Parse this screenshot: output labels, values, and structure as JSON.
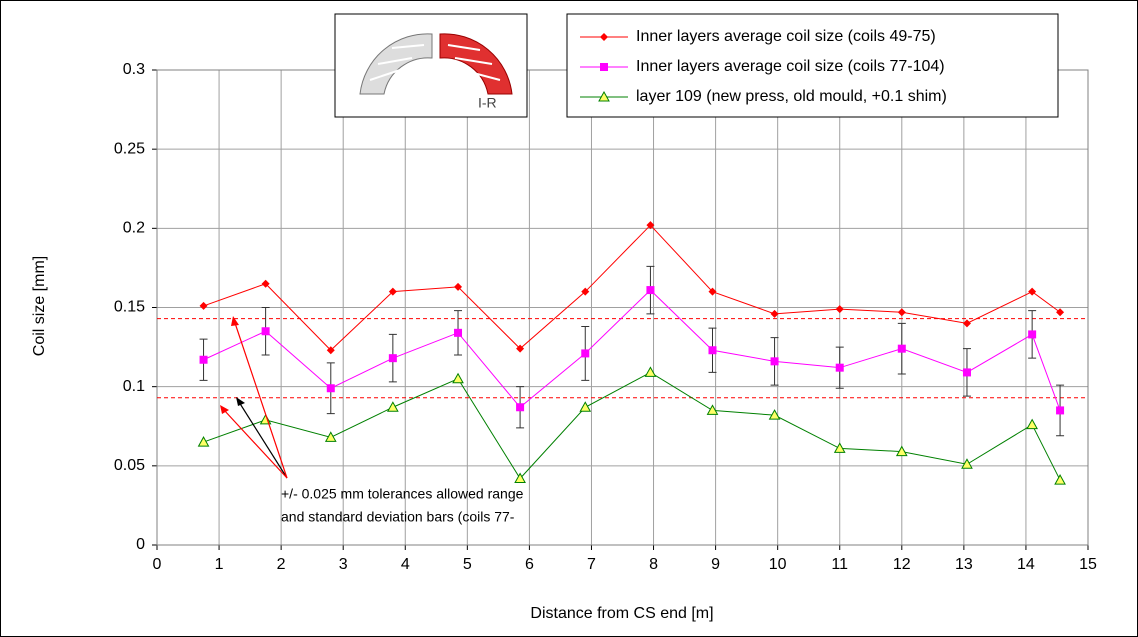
{
  "chart_data": {
    "type": "line",
    "x_label": "Distance from CS end [m]",
    "y_label": "Coil size [mm]",
    "xlim": [
      0,
      15
    ],
    "xticks": [
      0,
      1,
      2,
      3,
      4,
      5,
      6,
      7,
      8,
      9,
      10,
      11,
      12,
      13,
      14,
      15
    ],
    "ylim": [
      0,
      0.3
    ],
    "yticks": [
      0,
      0.05,
      0.1,
      0.15,
      0.2,
      0.25,
      0.3
    ],
    "grid": true,
    "legend": "top-right",
    "inset_label": "I-R",
    "annotation": [
      "+/- 0.025 mm tolerances allowed range",
      "and standard deviation bars (coils 77-"
    ],
    "ref_lines": {
      "color": "#ff0000",
      "values": [
        0.143,
        0.093
      ]
    },
    "series": [
      {
        "name": "Inner layers average coil size (coils 49-75)",
        "color": "#ff0000",
        "marker": "diamond",
        "x": [
          0.75,
          1.75,
          2.8,
          3.8,
          4.85,
          5.85,
          6.9,
          7.95,
          8.95,
          9.95,
          11,
          12,
          13.05,
          14.1,
          14.55
        ],
        "values": [
          0.151,
          0.165,
          0.123,
          0.16,
          0.163,
          0.124,
          0.16,
          0.202,
          0.16,
          0.146,
          0.149,
          0.147,
          0.14,
          0.16,
          0.147
        ]
      },
      {
        "name": "Inner layers average coil size (coils 77-104)",
        "color": "#ff00ff",
        "marker": "square",
        "x": [
          0.75,
          1.75,
          2.8,
          3.8,
          4.85,
          5.85,
          6.9,
          7.95,
          8.95,
          9.95,
          11,
          12,
          13.05,
          14.1,
          14.55
        ],
        "values": [
          0.117,
          0.135,
          0.099,
          0.118,
          0.134,
          0.087,
          0.121,
          0.161,
          0.123,
          0.116,
          0.112,
          0.124,
          0.109,
          0.133,
          0.085
        ],
        "errors": [
          0.013,
          0.015,
          0.016,
          0.015,
          0.014,
          0.013,
          0.017,
          0.015,
          0.014,
          0.015,
          0.013,
          0.016,
          0.015,
          0.015,
          0.016
        ]
      },
      {
        "name": "layer 109 (new press, old mould, +0.1 shim)",
        "color": "#008000",
        "marker": "triangle",
        "x": [
          0.75,
          1.75,
          2.8,
          3.8,
          4.85,
          5.85,
          6.9,
          7.95,
          8.95,
          9.95,
          11,
          12,
          13.05,
          14.1,
          14.55
        ],
        "values": [
          0.065,
          0.079,
          0.068,
          0.087,
          0.105,
          0.042,
          0.087,
          0.109,
          0.085,
          0.082,
          0.061,
          0.059,
          0.051,
          0.076,
          0.041
        ]
      }
    ]
  }
}
